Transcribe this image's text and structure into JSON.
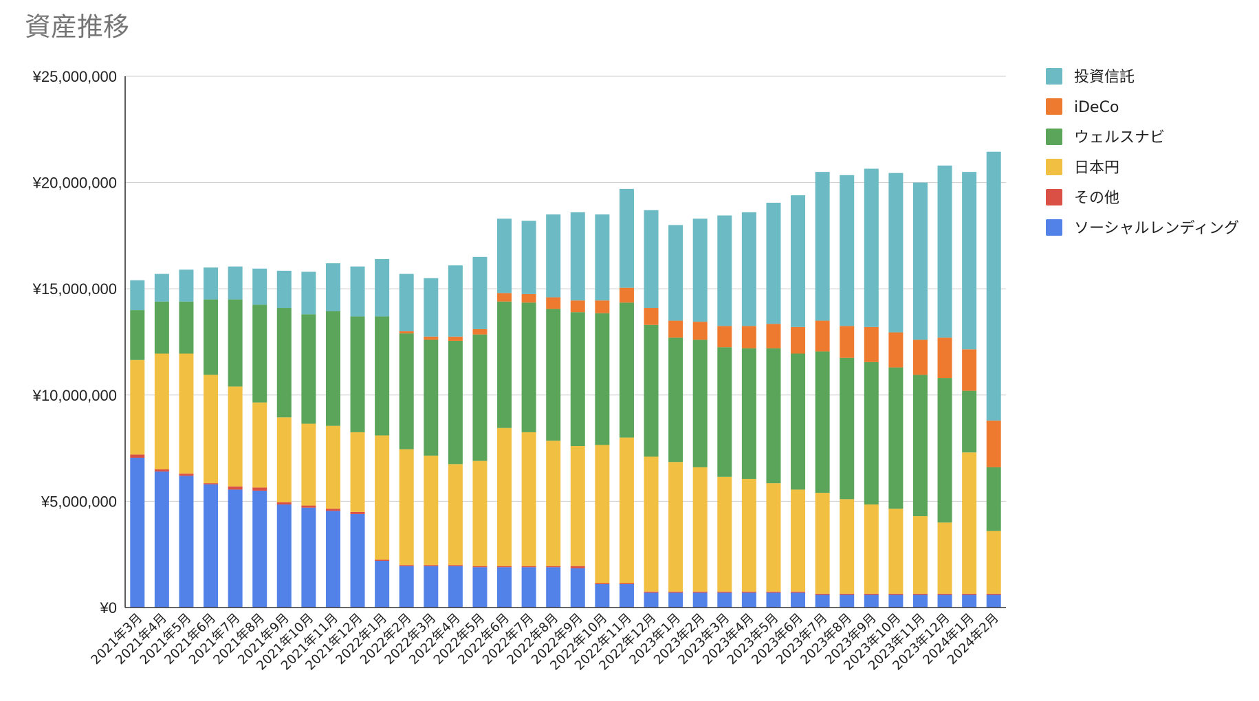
{
  "chart_data": {
    "type": "bar",
    "stacked": true,
    "title": "資産推移",
    "xlabel": "",
    "ylabel": "",
    "ylim": [
      0,
      25000000
    ],
    "yticks": [
      0,
      5000000,
      10000000,
      15000000,
      20000000,
      25000000
    ],
    "ytick_labels": [
      "¥0",
      "¥5,000,000",
      "¥10,000,000",
      "¥15,000,000",
      "¥20,000,000",
      "¥25,000,000"
    ],
    "grid": true,
    "legend_position": "right",
    "categories": [
      "2021年3月",
      "2021年4月",
      "2021年5月",
      "2021年6月",
      "2021年7月",
      "2021年8月",
      "2021年9月",
      "2021年10月",
      "2021年11月",
      "2021年12月",
      "2022年1月",
      "2022年2月",
      "2022年3月",
      "2022年4月",
      "2022年5月",
      "2022年6月",
      "2022年7月",
      "2022年8月",
      "2022年9月",
      "2022年10月",
      "2022年11月",
      "2022年12月",
      "2023年1月",
      "2023年2月",
      "2023年3月",
      "2023年4月",
      "2023年5月",
      "2023年6月",
      "2023年7月",
      "2023年8月",
      "2023年9月",
      "2023年10月",
      "2023年11月",
      "2023年12月",
      "2024年1月",
      "2024年2月"
    ],
    "series": [
      {
        "name": "ソーシャルレンディング",
        "color": "#5282E8",
        "values": [
          7050000,
          6400000,
          6200000,
          5800000,
          5550000,
          5500000,
          4850000,
          4700000,
          4550000,
          4400000,
          2200000,
          1950000,
          1950000,
          1950000,
          1900000,
          1900000,
          1900000,
          1900000,
          1850000,
          1100000,
          1100000,
          700000,
          700000,
          700000,
          700000,
          700000,
          700000,
          700000,
          600000,
          600000,
          600000,
          600000,
          600000,
          600000,
          600000,
          600000
        ]
      },
      {
        "name": "その他",
        "color": "#DA5044",
        "values": [
          150000,
          100000,
          100000,
          50000,
          150000,
          150000,
          100000,
          100000,
          100000,
          100000,
          50000,
          50000,
          50000,
          50000,
          50000,
          50000,
          50000,
          50000,
          100000,
          50000,
          50000,
          50000,
          50000,
          50000,
          50000,
          50000,
          50000,
          50000,
          50000,
          50000,
          50000,
          50000,
          50000,
          50000,
          50000,
          50000
        ]
      },
      {
        "name": "日本円",
        "color": "#F1BF42",
        "values": [
          4450000,
          5450000,
          5650000,
          5100000,
          4700000,
          4000000,
          4000000,
          3850000,
          3900000,
          3750000,
          5850000,
          5450000,
          5150000,
          4750000,
          4950000,
          6500000,
          6300000,
          5900000,
          5650000,
          6500000,
          6850000,
          6350000,
          6100000,
          5850000,
          5400000,
          5300000,
          5100000,
          4800000,
          4750000,
          4450000,
          4200000,
          4000000,
          3650000,
          3350000,
          6650000,
          2950000
        ]
      },
      {
        "name": "ウェルスナビ",
        "color": "#5AA55A",
        "values": [
          2350000,
          2450000,
          2450000,
          3550000,
          4100000,
          4600000,
          5150000,
          5150000,
          5400000,
          5450000,
          5600000,
          5450000,
          5450000,
          5800000,
          5950000,
          5950000,
          6100000,
          6200000,
          6300000,
          6200000,
          6350000,
          6200000,
          5850000,
          6000000,
          6100000,
          6150000,
          6350000,
          6400000,
          6650000,
          6650000,
          6700000,
          6650000,
          6650000,
          6800000,
          2900000,
          3000000
        ]
      },
      {
        "name": "iDeCo",
        "color": "#EE7A30",
        "values": [
          0,
          0,
          0,
          0,
          0,
          0,
          0,
          0,
          0,
          0,
          0,
          100000,
          150000,
          200000,
          250000,
          400000,
          400000,
          550000,
          550000,
          600000,
          700000,
          800000,
          800000,
          850000,
          1000000,
          1050000,
          1150000,
          1250000,
          1450000,
          1500000,
          1650000,
          1650000,
          1650000,
          1900000,
          1950000,
          2200000
        ]
      },
      {
        "name": "投資信託",
        "color": "#6BBAC4",
        "values": [
          1400000,
          1300000,
          1500000,
          1500000,
          1550000,
          1700000,
          1750000,
          2000000,
          2250000,
          2350000,
          2700000,
          2700000,
          2750000,
          3350000,
          3400000,
          3500000,
          3450000,
          3900000,
          4150000,
          4050000,
          4650000,
          4600000,
          4500000,
          4850000,
          5200000,
          5350000,
          5700000,
          6200000,
          7000000,
          7100000,
          7450000,
          7500000,
          7400000,
          8100000,
          8350000,
          12650000
        ]
      }
    ]
  }
}
